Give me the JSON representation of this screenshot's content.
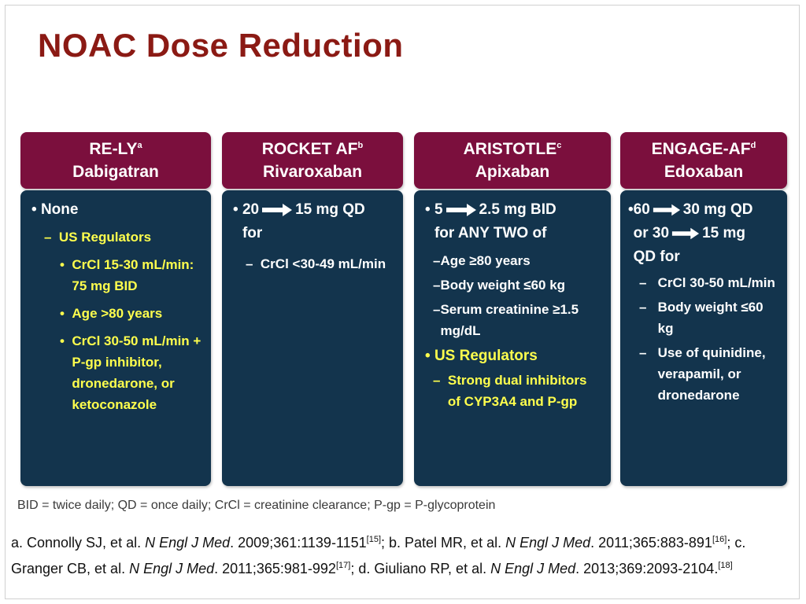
{
  "title": "NOAC Dose Reduction",
  "columns": [
    {
      "header_line1": "RE-LY",
      "header_sup": "a",
      "header_line2": "Dabigatran",
      "main": "None",
      "sub_heading": "US Regulators",
      "items": [
        "CrCl 15-30 mL/min: 75 mg BID",
        "Age >80 years",
        "CrCl 30-50 mL/min + P-gp inhibitor, dronedarone, or ketoconazole"
      ]
    },
    {
      "header_line1": "ROCKET  AF",
      "header_sup": "b",
      "header_line2": "Rivaroxaban",
      "dose_from": "20",
      "dose_to": "15 mg QD",
      "dose_tail": "for",
      "items": [
        "CrCl <30-49 mL/min"
      ]
    },
    {
      "header_line1": "ARISTOTLE",
      "header_sup": "c",
      "header_line2": "Apixaban",
      "dose_from": "5",
      "dose_to": "2.5 mg BID",
      "dose_tail": "for ANY TWO of",
      "items": [
        "Age ≥80 years",
        "Body weight ≤60 kg",
        "Serum creatinine ≥1.5 mg/dL"
      ],
      "sub_heading": "US Regulators",
      "sub_items": [
        "Strong dual inhibitors of CYP3A4 and P-gp"
      ]
    },
    {
      "header_line1": "ENGAGE-AF",
      "header_sup": "d",
      "header_line2": "Edoxaban",
      "dose_from": "60",
      "dose_to": "30 mg QD",
      "dose2_prefix": "or 30",
      "dose2_to": "15 mg",
      "dose_tail": "QD for",
      "items": [
        "CrCl 30-50 mL/min",
        "Body weight ≤60 kg",
        "Use of quinidine, verapamil, or dronedarone"
      ]
    }
  ],
  "footnote": "BID = twice daily; QD = once daily; CrCl = creatinine clearance; P-gp = P-glycoprotein",
  "references": [
    {
      "prefix": "a. Connolly SJ, et al.",
      "journal": "N Engl J Med",
      "cite": ". 2009;361:1139-1151",
      "num": "[15]"
    },
    {
      "prefix": "; b. Patel MR, et al.",
      "journal": "N Engl J Med",
      "cite": ". 2011;365:883-891",
      "num": "[16]"
    },
    {
      "prefix": "; c. Granger CB, et al.",
      "journal": "N Engl J Med",
      "cite": ". 2011;365:981-992",
      "num": "[17]"
    },
    {
      "prefix": "; d. Giuliano RP, et al.",
      "journal": "N Engl J Med",
      "cite": ". 2013;369:2093-2104.",
      "num": "[18]"
    }
  ]
}
